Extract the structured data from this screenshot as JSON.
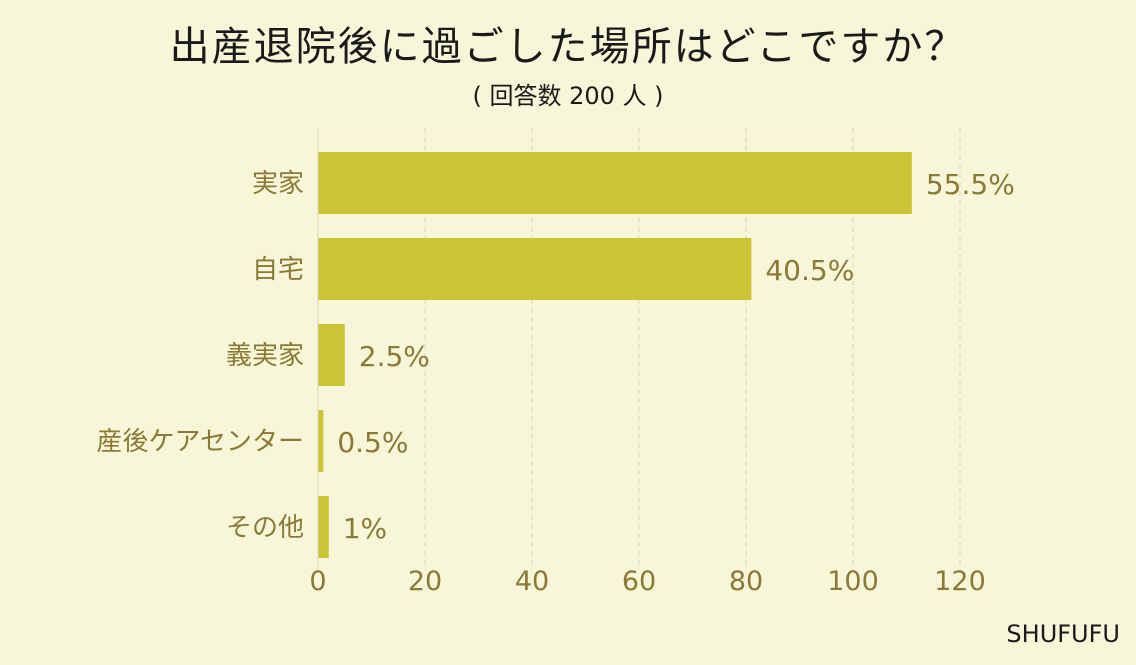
{
  "title": "出産退院後に過ごした場所はどこですか？",
  "subtitle": "( 回答数 200 人 )",
  "credit": "SHUFUFU",
  "colors": {
    "background": "#f7f6d8",
    "bar": "#cbc434",
    "label_text": "#8a7a36",
    "grid": "#d9d7bd"
  },
  "chart_data": {
    "type": "bar",
    "orientation": "horizontal",
    "title": "出産退院後に過ごした場所はどこですか？",
    "subtitle": "( 回答数 200 人 )",
    "categories": [
      "実家",
      "自宅",
      "義実家",
      "産後ケアセンター",
      "その他"
    ],
    "values": [
      111,
      81,
      5,
      1,
      2
    ],
    "value_labels": [
      "55.5%",
      "40.5%",
      "2.5%",
      "0.5%",
      "1%"
    ],
    "xlim": [
      0,
      120
    ],
    "xticks": [
      "0",
      "20",
      "40",
      "60",
      "80",
      "100",
      "120"
    ],
    "grid": "vertical dashed",
    "legend": "none"
  }
}
